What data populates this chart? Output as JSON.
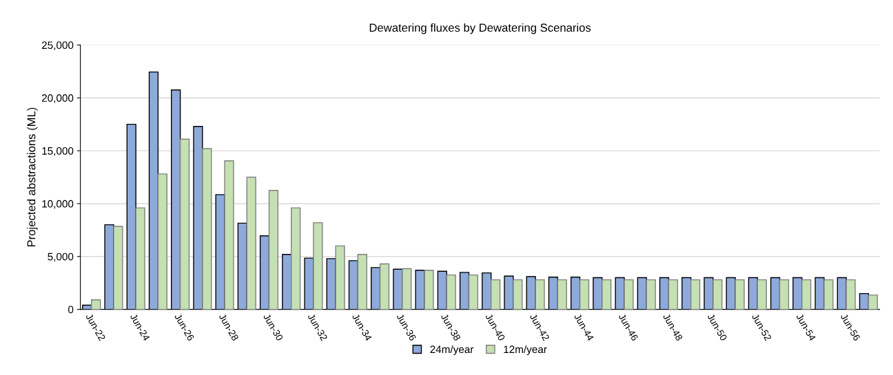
{
  "chart_data": {
    "type": "bar",
    "title": "Dewatering fluxes by Dewatering Scenarios",
    "ylabel": "Projected abstractions (ML)",
    "categories": [
      "Jun-22",
      null,
      "Jun-24",
      null,
      "Jun-26",
      null,
      "Jun-28",
      null,
      "Jun-30",
      null,
      "Jun-32",
      null,
      "Jun-34",
      null,
      "Jun-36",
      null,
      "Jun-38",
      null,
      "Jun-40",
      null,
      "Jun-42",
      null,
      "Jun-44",
      null,
      "Jun-46",
      null,
      "Jun-48",
      null,
      "Jun-50",
      null,
      "Jun-52",
      null,
      "Jun-54",
      null,
      "Jun-56",
      null
    ],
    "series": [
      {
        "name": "24m/year",
        "color": "#8eaadb",
        "values": [
          400,
          8000,
          17500,
          22450,
          20750,
          17300,
          10850,
          8150,
          6950,
          5200,
          4850,
          4800,
          4600,
          3950,
          3800,
          3700,
          3600,
          3500,
          3450,
          3150,
          3100,
          3050,
          3050,
          3000,
          3000,
          3000,
          3000,
          3000,
          3000,
          3000,
          3000,
          3000,
          3000,
          3000,
          3000,
          1500
        ]
      },
      {
        "name": "12m/year",
        "color": "#c5e0b3",
        "values": [
          900,
          7850,
          9600,
          12800,
          16100,
          15200,
          14050,
          12500,
          11250,
          9600,
          8200,
          6000,
          5200,
          4300,
          3850,
          3700,
          3250,
          3250,
          2800,
          2800,
          2800,
          2800,
          2800,
          2800,
          2800,
          2800,
          2800,
          2800,
          2800,
          2800,
          2800,
          2800,
          2800,
          2800,
          2800,
          1350
        ]
      }
    ],
    "ylim": [
      0,
      25000
    ],
    "yticks": [
      {
        "value": 0,
        "label": "0"
      },
      {
        "value": 5000,
        "label": "5,000"
      },
      {
        "value": 10000,
        "label": "10,000"
      },
      {
        "value": 15000,
        "label": "15,000"
      },
      {
        "value": 20000,
        "label": "20,000"
      },
      {
        "value": 25000,
        "label": "25,000"
      }
    ],
    "grid": "y",
    "legend": "bottom"
  }
}
